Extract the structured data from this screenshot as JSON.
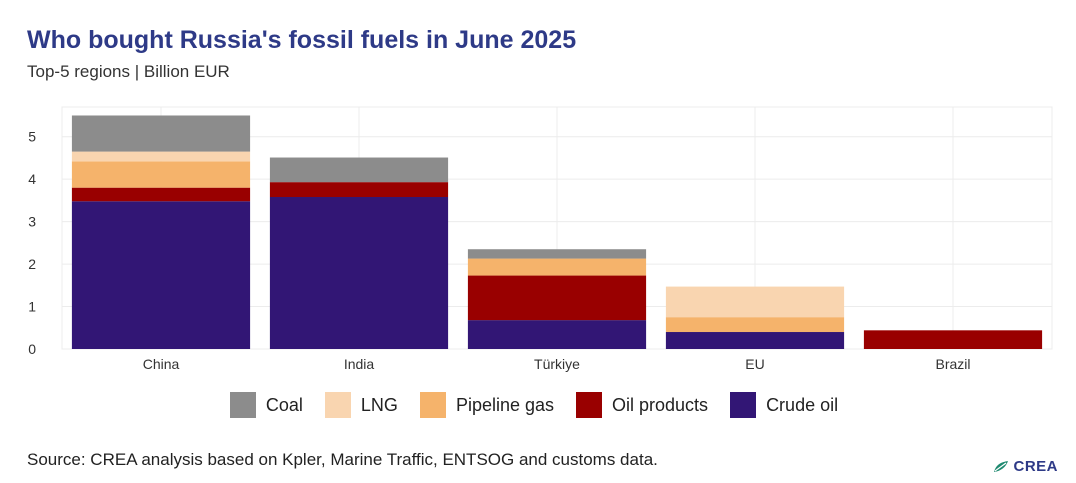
{
  "header": {
    "title": "Who bought Russia's fossil fuels in June 2025",
    "subtitle": "Top-5 regions | Billion EUR"
  },
  "source": "Source: CREA analysis based on Kpler, Marine Traffic, ENTSOG and customs data.",
  "logo": {
    "text": "CREA",
    "icon": "crea-leaf-icon"
  },
  "legend": {
    "placement": "bottom-center",
    "items": [
      {
        "label": "Coal",
        "color": "#8c8c8c"
      },
      {
        "label": "LNG",
        "color": "#f9d5b0"
      },
      {
        "label": "Pipeline gas",
        "color": "#f5b36b"
      },
      {
        "label": "Oil products",
        "color": "#990000"
      },
      {
        "label": "Crude oil",
        "color": "#321675"
      }
    ]
  },
  "chart_data": {
    "type": "bar",
    "stacked": true,
    "grid": true,
    "categories": [
      "China",
      "India",
      "Türkiye",
      "EU",
      "Brazil"
    ],
    "ylim": [
      0,
      5.7
    ],
    "yticks": [
      0,
      1,
      2,
      3,
      4,
      5
    ],
    "xlabel": "",
    "ylabel": "",
    "series": [
      {
        "name": "Crude oil",
        "color": "#321675",
        "values": [
          3.48,
          3.58,
          0.68,
          0.4,
          0
        ]
      },
      {
        "name": "Oil products",
        "color": "#990000",
        "values": [
          0.32,
          0.35,
          1.05,
          0,
          0.44
        ]
      },
      {
        "name": "Pipeline gas",
        "color": "#f5b36b",
        "values": [
          0.62,
          0,
          0.4,
          0.35,
          0
        ]
      },
      {
        "name": "LNG",
        "color": "#f9d5b0",
        "values": [
          0.23,
          0,
          0,
          0.72,
          0
        ]
      },
      {
        "name": "Coal",
        "color": "#8c8c8c",
        "values": [
          0.85,
          0.58,
          0.22,
          0,
          0
        ]
      }
    ]
  }
}
